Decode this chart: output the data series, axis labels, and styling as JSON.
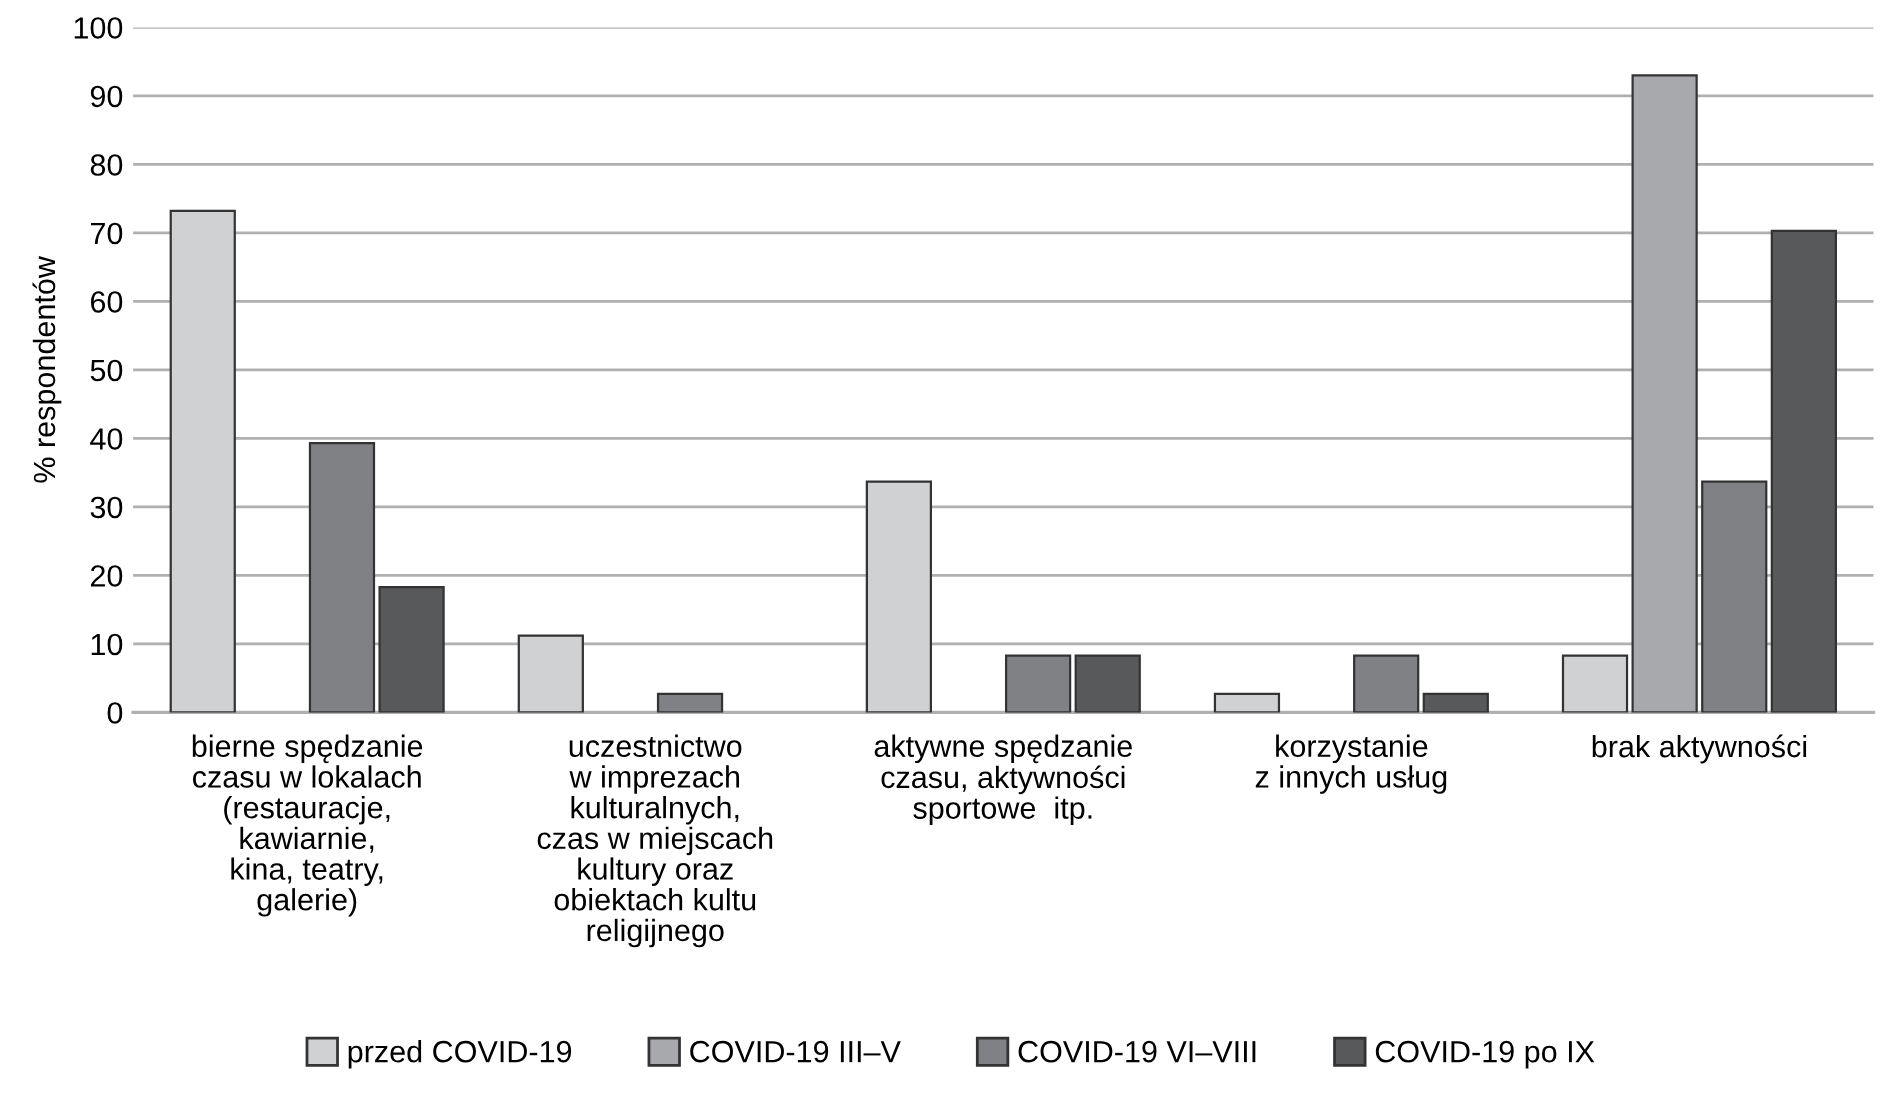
{
  "chart_data": {
    "type": "bar",
    "ylabel": "% respondentów",
    "categories": [
      "bierne spędzanie\nczasu w lokalach\n(restauracje,\nkawiarnie,\nkina, teatry,\ngalerie)",
      "uczestnictwo\nw imprezach\nkulturalnych,\nczas w miejscach\nkultury oraz\nobiektach kultu\nreligijnego",
      "aktywne spędzanie\nczasu, aktywności\nsportowe  itp.",
      "korzystanie\nz innych usług",
      "brak aktywności"
    ],
    "series": [
      {
        "name": "przed COVID-19",
        "color": "#d0d1d3",
        "values": [
          73.2,
          11.2,
          33.7,
          2.7,
          8.3
        ]
      },
      {
        "name": "COVID-19 III–V",
        "color": "#a8a9ac",
        "values": [
          null,
          null,
          null,
          null,
          93.0
        ]
      },
      {
        "name": "COVID-19 VI–VIII",
        "color": "#808184",
        "values": [
          39.3,
          2.7,
          8.3,
          8.3,
          33.7
        ]
      },
      {
        "name": "COVID-19 po IX",
        "color": "#58595b",
        "values": [
          18.3,
          null,
          8.3,
          2.7,
          70.3
        ]
      }
    ],
    "ylim": [
      0,
      100
    ],
    "yticks": [
      0,
      10,
      20,
      30,
      40,
      50,
      60,
      70,
      80,
      90,
      100
    ],
    "grid": "y",
    "legend": "bottom"
  }
}
